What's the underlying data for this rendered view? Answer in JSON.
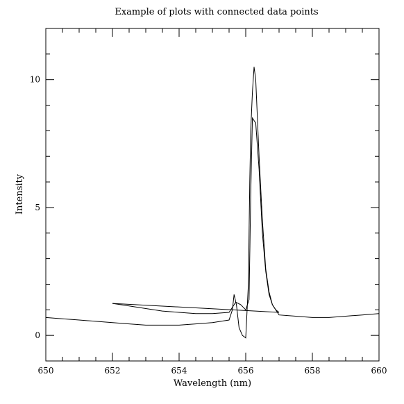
{
  "chart_data": {
    "type": "line",
    "title": "Example of plots with connected data points",
    "xlabel": "Wavelength (nm)",
    "ylabel": "Intensity",
    "xlim": [
      650,
      660
    ],
    "ylim": [
      -1,
      12
    ],
    "grid": false,
    "legend": "none",
    "xticks": [
      650,
      652,
      654,
      656,
      658,
      660
    ],
    "yticks": [
      0,
      5,
      10
    ],
    "xtick_labels": [
      "650",
      "652",
      "654",
      "656",
      "658",
      "660"
    ],
    "ytick_labels": [
      "0",
      "5",
      "10"
    ],
    "series": [
      {
        "x": [
          650.0,
          650.5,
          651.0,
          651.5,
          652.0,
          652.5,
          653.0,
          653.5,
          654.0,
          654.5,
          655.0,
          655.5,
          655.6,
          655.65,
          655.72,
          655.8,
          655.9,
          656.0,
          656.08,
          656.12,
          656.15,
          656.2,
          656.25,
          656.3,
          656.35,
          656.4,
          656.5,
          656.6,
          656.7,
          656.8,
          656.9,
          657.0,
          657.5,
          658.0,
          658.5,
          659.0,
          659.5,
          660.0
        ],
        "y": [
          0.7,
          0.65,
          0.6,
          0.55,
          0.5,
          0.45,
          0.4,
          0.4,
          0.4,
          0.45,
          0.5,
          0.6,
          1.0,
          1.6,
          1.2,
          0.3,
          0.0,
          -0.1,
          2.0,
          6.0,
          8.0,
          9.5,
          10.5,
          10.0,
          8.5,
          7.0,
          4.5,
          2.6,
          1.7,
          1.2,
          1.0,
          0.8,
          0.75,
          0.7,
          0.7,
          0.75,
          0.8,
          0.85
        ]
      },
      {
        "x": [
          652.0,
          652.5,
          653.0,
          653.5,
          654.0,
          654.5,
          655.0,
          655.5,
          655.7,
          655.85,
          656.0,
          656.1,
          656.15,
          656.2,
          656.3,
          656.4,
          656.5,
          656.6,
          656.7,
          656.8,
          656.9,
          657.0
        ],
        "y": [
          1.25,
          1.15,
          1.05,
          0.95,
          0.9,
          0.85,
          0.85,
          0.9,
          1.3,
          1.2,
          1.0,
          1.4,
          5.5,
          8.5,
          8.3,
          6.5,
          4.0,
          2.5,
          1.6,
          1.2,
          1.0,
          0.9
        ]
      },
      {
        "x": [
          652.0,
          657.0
        ],
        "y": [
          1.25,
          0.9
        ]
      }
    ]
  }
}
